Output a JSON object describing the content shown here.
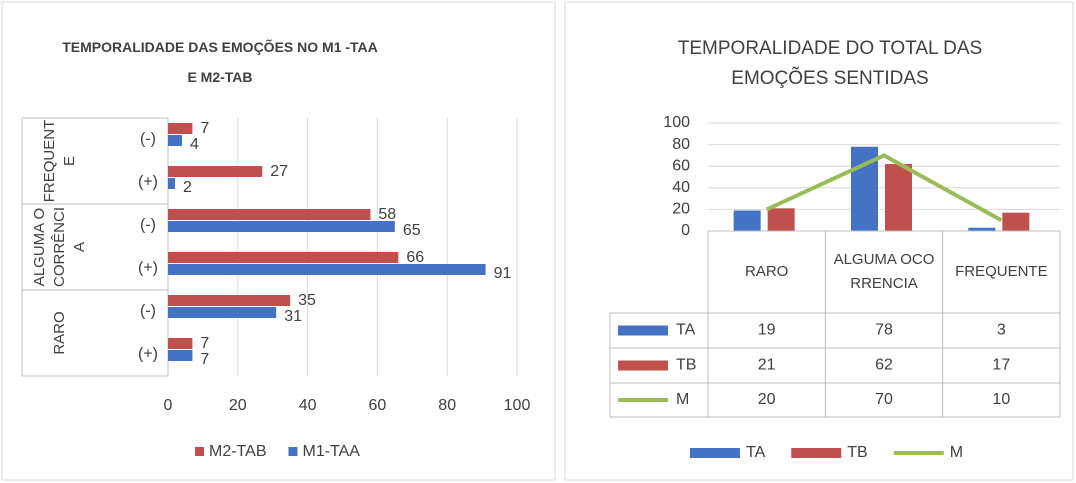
{
  "chart_data": [
    {
      "type": "hbar",
      "title": "TEMPORALIDADE DAS EMOÇÕES NO M1 -TAA E M2-TAB",
      "groups": [
        "FREQUENTE",
        "ALGUMA OCORRÊNCIA",
        "RARO"
      ],
      "categories": [
        "(-)",
        "(+)",
        "(-)",
        "(+)",
        "(-)",
        "(+)"
      ],
      "series": [
        {
          "name": "M2-TAB",
          "color": "#c0504d",
          "values": [
            7,
            27,
            58,
            66,
            35,
            7
          ]
        },
        {
          "name": "M1-TAA",
          "color": "#4472c4",
          "values": [
            4,
            2,
            65,
            91,
            31,
            7
          ]
        }
      ],
      "xlim": [
        0,
        100
      ],
      "xticks": [
        0,
        20,
        40,
        60,
        80,
        100
      ],
      "grid": true,
      "legend": "bottom"
    },
    {
      "type": "combo",
      "title": "TEMPORALIDADE DO TOTAL DAS EMOÇÕES SENTIDAS",
      "categories": [
        "RARO",
        "ALGUMA OCORRENCIA",
        "FREQUENTE"
      ],
      "series": [
        {
          "name": "TA",
          "color": "#4472c4",
          "kind": "bar",
          "values": [
            19,
            78,
            3
          ]
        },
        {
          "name": "TB",
          "color": "#c0504d",
          "kind": "bar",
          "values": [
            21,
            62,
            17
          ]
        },
        {
          "name": "M",
          "color": "#9bbb59",
          "kind": "line",
          "values": [
            20,
            70,
            10
          ]
        }
      ],
      "ylim": [
        0,
        100
      ],
      "yticks": [
        0,
        20,
        40,
        60,
        80,
        100
      ],
      "grid": true,
      "legend": "bottom"
    }
  ]
}
